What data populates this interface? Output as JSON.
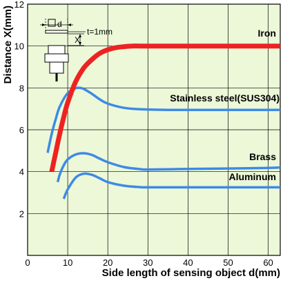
{
  "chart_data": {
    "type": "line",
    "xlabel": "Side length of sensing object d(mm)",
    "ylabel": "Distance X(mm)",
    "xlim": [
      0,
      63
    ],
    "ylim": [
      0,
      12
    ],
    "xticks": [
      0,
      10,
      20,
      30,
      40,
      50,
      60
    ],
    "yticks": [
      2,
      4,
      6,
      8,
      10,
      12
    ],
    "grid": true,
    "background": "#ecf8d8",
    "series": [
      {
        "name": "Iron",
        "color": "#ee2222",
        "x": [
          6,
          7,
          8,
          9,
          10,
          12,
          14,
          16,
          18,
          20,
          22,
          24,
          26,
          28,
          30,
          40,
          50,
          60,
          63
        ],
        "y": [
          4.0,
          4.9,
          5.8,
          6.6,
          7.3,
          8.3,
          8.95,
          9.35,
          9.65,
          9.82,
          9.92,
          9.97,
          10.0,
          10.0,
          10.0,
          10.0,
          10.0,
          10.0,
          10.0
        ]
      },
      {
        "name": "Stainless steel(SUS304)",
        "color": "#3d8ae6",
        "x": [
          5,
          6,
          7,
          8,
          10,
          12,
          13,
          14,
          16,
          18,
          20,
          24,
          28,
          35,
          45,
          55,
          63
        ],
        "y": [
          4.9,
          5.8,
          6.5,
          7.1,
          7.75,
          7.98,
          8.0,
          7.95,
          7.72,
          7.45,
          7.25,
          7.05,
          6.98,
          6.95,
          6.95,
          6.95,
          6.95
        ]
      },
      {
        "name": "Brass",
        "color": "#3d8ae6",
        "x": [
          7.5,
          8,
          9,
          10,
          12,
          14,
          16,
          18,
          20,
          24,
          28,
          30,
          40,
          50,
          60,
          63
        ],
        "y": [
          3.5,
          3.85,
          4.3,
          4.58,
          4.82,
          4.88,
          4.8,
          4.62,
          4.45,
          4.22,
          4.12,
          4.1,
          4.13,
          4.15,
          4.18,
          4.2
        ]
      },
      {
        "name": "Aluminum",
        "color": "#3d8ae6",
        "x": [
          9,
          10,
          12,
          14,
          16,
          18,
          20,
          24,
          28,
          30,
          40,
          50,
          60,
          63
        ],
        "y": [
          2.7,
          3.15,
          3.72,
          3.9,
          3.85,
          3.68,
          3.5,
          3.33,
          3.26,
          3.25,
          3.25,
          3.25,
          3.25,
          3.25
        ]
      }
    ],
    "inset_diagram": {
      "symbol_label": "d",
      "thickness_label": "t=1mm",
      "distance_label": "X"
    }
  }
}
